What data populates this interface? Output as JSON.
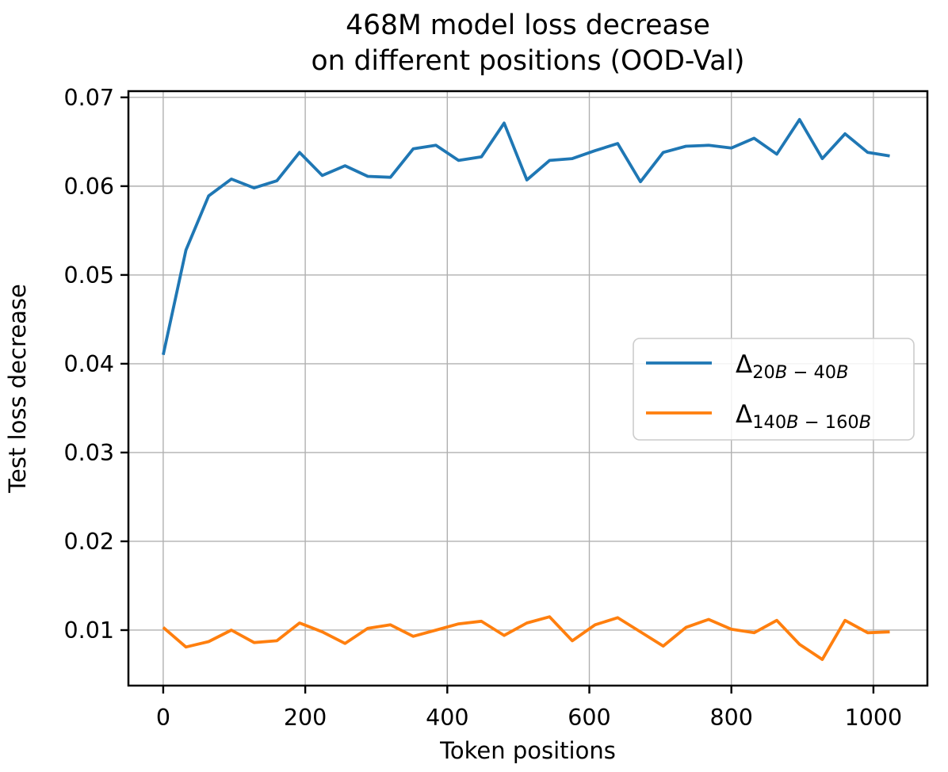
{
  "chart_data": {
    "type": "line",
    "title_lines": [
      "468M model loss decrease",
      "on different positions (OOD-Val)"
    ],
    "xlabel": "Token positions",
    "ylabel": "Test loss decrease",
    "x_tick_labels": [
      "0",
      "200",
      "400",
      "600",
      "800",
      "1000"
    ],
    "x_tick_values": [
      0,
      200,
      400,
      600,
      800,
      1000
    ],
    "y_tick_labels": [
      "0.01",
      "0.02",
      "0.03",
      "0.04",
      "0.05",
      "0.06",
      "0.07"
    ],
    "y_tick_values": [
      0.01,
      0.02,
      0.03,
      0.04,
      0.05,
      0.06,
      0.07
    ],
    "xlim": [
      -49,
      1076
    ],
    "ylim": [
      0.00375,
      0.0707
    ],
    "grid": true,
    "grid_color": "#b0b0b0",
    "spine_color": "#000000",
    "legend": {
      "position": "center right",
      "edge_color": "#cccccc",
      "fill_color": "#ffffff",
      "entries": [
        {
          "symbol": "Δ",
          "subscript": "20B − 40B",
          "plain_label": "Δ_(20B − 40B)",
          "color": "#1f77b4"
        },
        {
          "symbol": "Δ",
          "subscript": "140B − 160B",
          "plain_label": "Δ_(140B − 160B)",
          "color": "#ff7f0e"
        }
      ]
    },
    "x": [
      0,
      32,
      64,
      96,
      128,
      160,
      192,
      224,
      256,
      288,
      320,
      352,
      384,
      416,
      448,
      480,
      512,
      544,
      576,
      608,
      640,
      672,
      704,
      736,
      768,
      800,
      832,
      864,
      896,
      928,
      960,
      992,
      1023
    ],
    "series": [
      {
        "name": "delta-20B-40B",
        "color": "#1f77b4",
        "values": [
          0.041,
          0.0528,
          0.0589,
          0.0608,
          0.0598,
          0.0606,
          0.0638,
          0.0612,
          0.0623,
          0.0611,
          0.061,
          0.0642,
          0.0646,
          0.0629,
          0.0633,
          0.0671,
          0.0607,
          0.0629,
          0.0631,
          0.064,
          0.0648,
          0.0605,
          0.0638,
          0.0645,
          0.0646,
          0.0643,
          0.0654,
          0.0636,
          0.0675,
          0.0631,
          0.0659,
          0.0638,
          0.0634
        ]
      },
      {
        "name": "delta-140B-160B",
        "color": "#ff7f0e",
        "values": [
          0.0103,
          0.0081,
          0.0087,
          0.01,
          0.0086,
          0.0088,
          0.0108,
          0.0098,
          0.0085,
          0.0102,
          0.0106,
          0.0093,
          0.01,
          0.0107,
          0.011,
          0.0094,
          0.0108,
          0.0115,
          0.0088,
          0.0106,
          0.0114,
          0.0098,
          0.0082,
          0.0103,
          0.0112,
          0.0101,
          0.0097,
          0.0111,
          0.0084,
          0.0067,
          0.0111,
          0.0097,
          0.0098
        ]
      }
    ]
  }
}
